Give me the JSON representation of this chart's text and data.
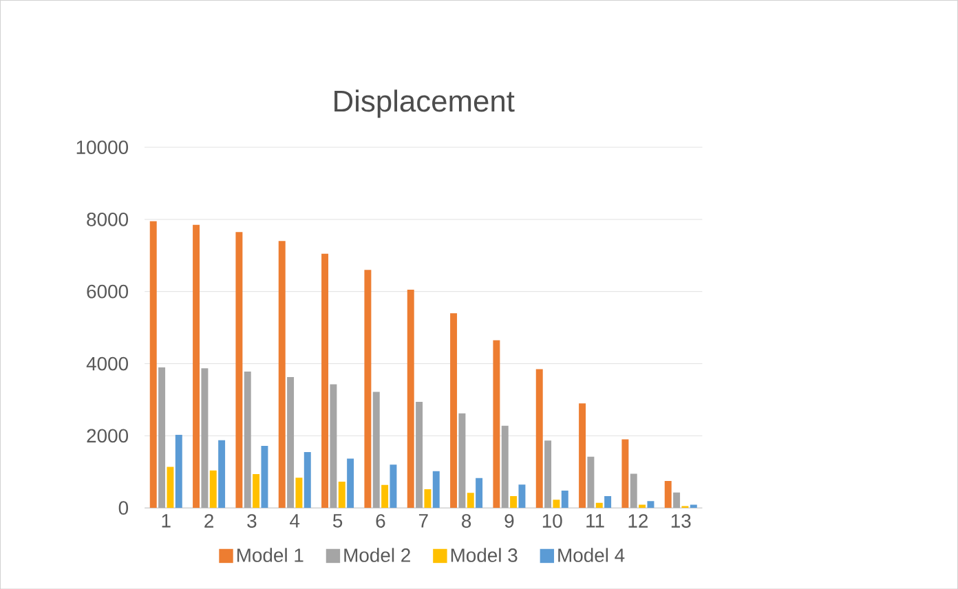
{
  "chart_data": {
    "type": "bar",
    "title": "Displacement",
    "categories": [
      "1",
      "2",
      "3",
      "4",
      "5",
      "6",
      "7",
      "8",
      "9",
      "10",
      "11",
      "12",
      "13"
    ],
    "series": [
      {
        "name": "Model 1",
        "color": "#ed7d31",
        "values": [
          7950,
          7850,
          7650,
          7400,
          7050,
          6600,
          6050,
          5400,
          4650,
          3850,
          2900,
          1900,
          750
        ]
      },
      {
        "name": "Model 2",
        "color": "#a5a5a5",
        "values": [
          3900,
          3870,
          3780,
          3630,
          3430,
          3220,
          2940,
          2620,
          2280,
          1870,
          1420,
          950,
          430
        ]
      },
      {
        "name": "Model 3",
        "color": "#ffc000",
        "values": [
          1140,
          1040,
          940,
          840,
          730,
          640,
          520,
          420,
          330,
          230,
          140,
          90,
          50
        ]
      },
      {
        "name": "Model 4",
        "color": "#5b9bd5",
        "values": [
          2030,
          1880,
          1720,
          1550,
          1370,
          1200,
          1020,
          830,
          650,
          480,
          330,
          190,
          90
        ]
      }
    ],
    "ylim": [
      0,
      10000
    ],
    "yticks": [
      0,
      2000,
      4000,
      6000,
      8000,
      10000
    ],
    "grid": "y",
    "legend": "bottom"
  }
}
